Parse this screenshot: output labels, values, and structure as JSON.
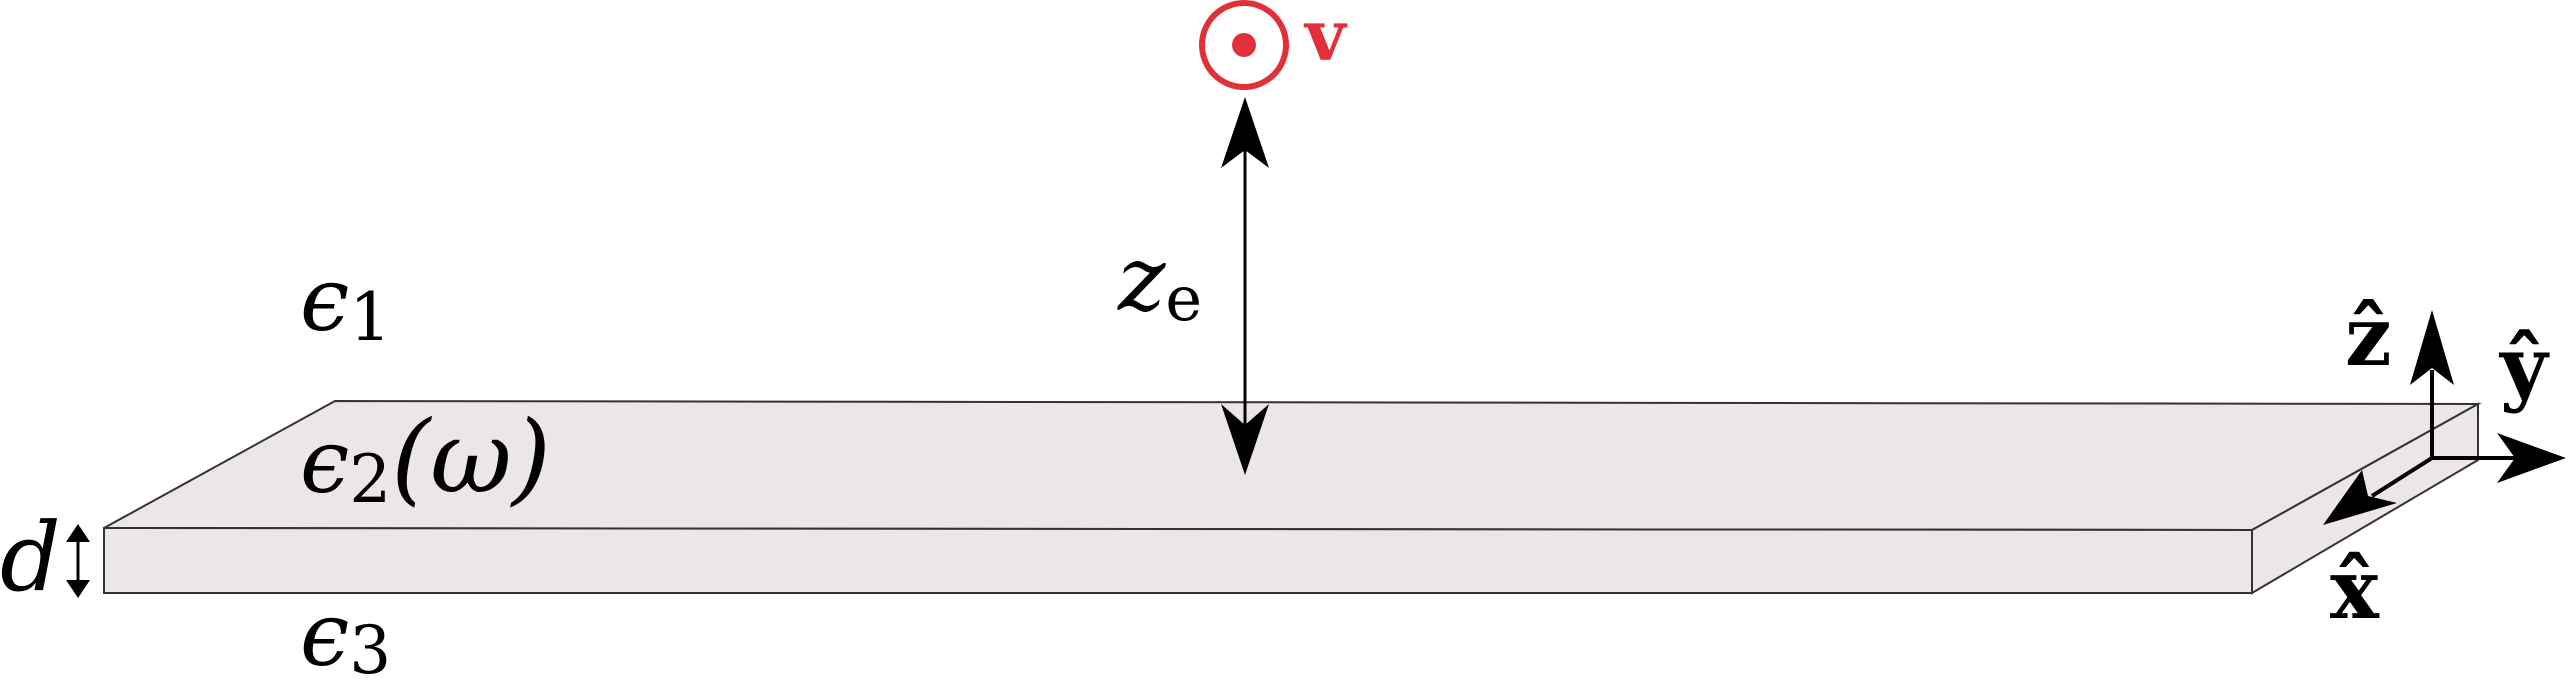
{
  "diagram": {
    "colors": {
      "slab_fill": "#ece6e6",
      "slab_edge": "#333333",
      "arrow": "#000000",
      "velocity": "#e1303a"
    },
    "velocity": {
      "label": "v",
      "symbol": "out-of-page-icon"
    },
    "distance_label": {
      "main": "z",
      "sub": "e"
    },
    "media": {
      "eps1": {
        "main": "ϵ",
        "sub": "1",
        "suffix": ""
      },
      "eps2": {
        "main": "ϵ",
        "sub": "2",
        "suffix": "(ω)"
      },
      "eps3": {
        "main": "ϵ",
        "sub": "3",
        "suffix": ""
      }
    },
    "thickness_label": "d",
    "axes": {
      "x": "x̂",
      "y": "ŷ",
      "z": "ẑ"
    }
  }
}
